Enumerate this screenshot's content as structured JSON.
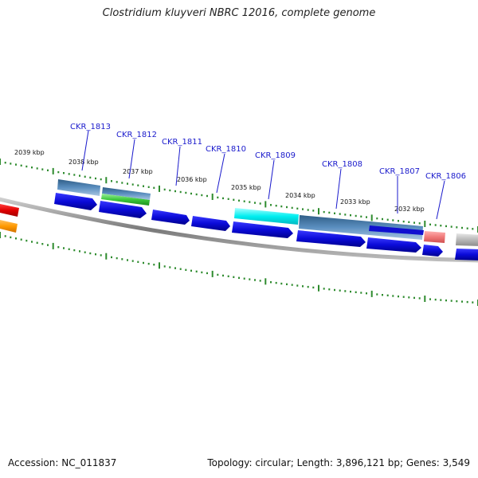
{
  "title": "Clostridium kluyveri NBRC 12016, complete genome",
  "footer": {
    "accession": "Accession: NC_011837",
    "summary": "Topology: circular; Length: 3,896,121 bp; Genes: 3,549"
  },
  "scale": {
    "unit_suffix": " kbp",
    "labels": [
      "2039 kbp",
      "2038 kbp",
      "2037 kbp",
      "2036 kbp",
      "2035 kbp",
      "2034 kbp",
      "2033 kbp",
      "2032 kbp"
    ]
  },
  "genes": [
    {
      "id": "CKR_1813"
    },
    {
      "id": "CKR_1812"
    },
    {
      "id": "CKR_1811"
    },
    {
      "id": "CKR_1810"
    },
    {
      "id": "CKR_1809"
    },
    {
      "id": "CKR_1808"
    },
    {
      "id": "CKR_1807"
    },
    {
      "id": "CKR_1806"
    }
  ],
  "colors": {
    "cds_arrow": "#1010e0",
    "backbone": "#888888",
    "tick_green": "#2e8b2e",
    "label_blue": "#1a1acc",
    "red_feature": "#e01010",
    "orange_feature": "#ff9900",
    "cyan_feature": "#00e5ee",
    "steel_feature": "#4a7ca8",
    "green_feature": "#40c040",
    "pink_feature": "#f08080",
    "grey_feature": "#b0b0b0"
  }
}
